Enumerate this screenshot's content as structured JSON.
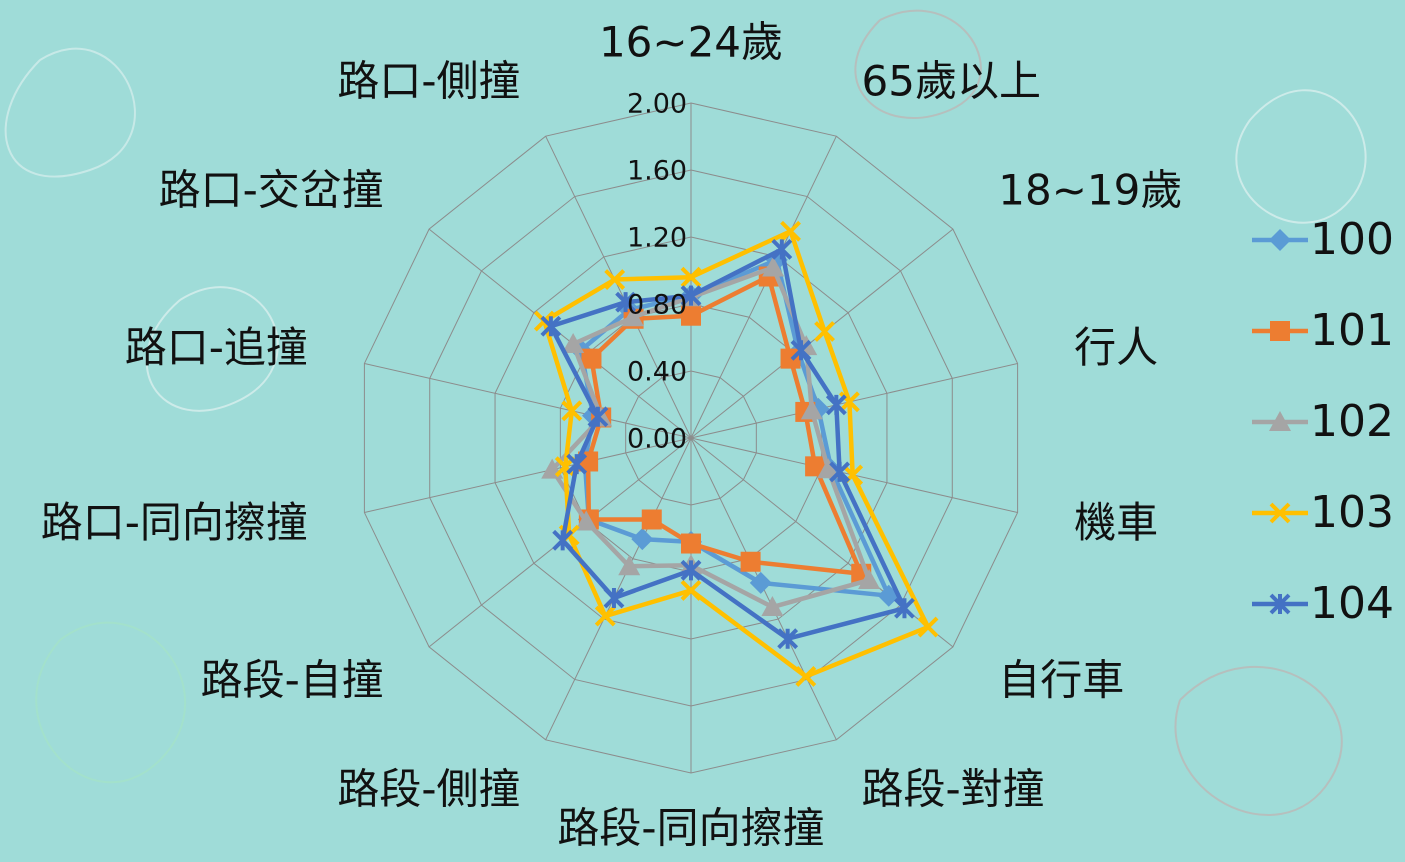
{
  "chart_data": {
    "type": "radar",
    "categories": [
      "16~24歲",
      "65歲以上",
      "18~19歲",
      "行人",
      "機車",
      "自行車",
      "路段-對撞",
      "路段-同向擦撞",
      "路段-側撞",
      "路段-自撞",
      "路口-同向擦撞",
      "路口-追撞",
      "路口-交岔撞",
      "路口-側撞"
    ],
    "rlim": [
      0,
      2
    ],
    "rticks": [
      {
        "value": 0,
        "label": "0.00"
      },
      {
        "value": 0.4,
        "label": "0.40"
      },
      {
        "value": 0.8,
        "label": "0.80"
      },
      {
        "value": 1.2,
        "label": "1.20"
      },
      {
        "value": 1.6,
        "label": "1.60"
      },
      {
        "value": 2,
        "label": "2.00"
      }
    ],
    "grid": true,
    "legend": "right",
    "series": [
      {
        "name": "100",
        "color": "#5b9bd5",
        "marker": "diamond",
        "values": [
          0.85,
          1.18,
          0.82,
          0.78,
          0.86,
          1.51,
          0.96,
          0.62,
          0.67,
          0.78,
          0.65,
          0.6,
          0.84,
          0.85
        ]
      },
      {
        "name": "101",
        "color": "#ed7d31",
        "marker": "square",
        "values": [
          0.73,
          1.07,
          0.76,
          0.7,
          0.76,
          1.3,
          0.82,
          0.63,
          0.54,
          0.78,
          0.63,
          0.55,
          0.76,
          0.79
        ]
      },
      {
        "name": "102",
        "color": "#a5a5a5",
        "marker": "triangle",
        "values": [
          0.84,
          1.13,
          0.88,
          0.74,
          0.84,
          1.36,
          1.12,
          0.76,
          0.85,
          0.8,
          0.85,
          0.55,
          0.9,
          0.8
        ]
      },
      {
        "name": "103",
        "color": "#ffc000",
        "marker": "x",
        "values": [
          0.96,
          1.37,
          1.02,
          0.97,
          0.99,
          1.81,
          1.58,
          0.91,
          1.18,
          0.93,
          0.77,
          0.73,
          1.12,
          1.05
        ]
      },
      {
        "name": "104",
        "color": "#4472c4",
        "marker": "star",
        "values": [
          0.85,
          1.25,
          0.84,
          0.89,
          0.91,
          1.63,
          1.33,
          0.79,
          1.06,
          0.98,
          0.7,
          0.57,
          1.07,
          0.9
        ]
      }
    ]
  }
}
